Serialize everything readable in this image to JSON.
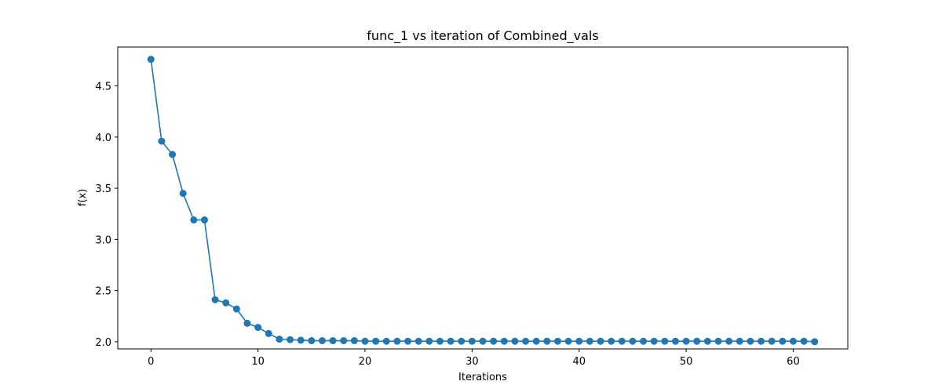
{
  "chart_data": {
    "type": "line",
    "title": "func_1 vs iteration of Combined_vals",
    "xlabel": "Iterations",
    "ylabel": "f(x)",
    "xlim": [
      -3.1,
      65.1
    ],
    "ylim": [
      1.93,
      4.88
    ],
    "xticks": [
      0,
      10,
      20,
      30,
      40,
      50,
      60
    ],
    "yticks": [
      2.0,
      2.5,
      3.0,
      3.5,
      4.0,
      4.5
    ],
    "grid": false,
    "color": "#1f77b4",
    "marker": "circle",
    "series": [
      {
        "x": [
          0,
          1,
          2,
          3,
          4,
          5,
          6,
          7,
          8,
          9,
          10,
          11,
          12,
          13,
          14,
          15,
          16,
          17,
          18,
          19,
          20,
          21,
          22,
          23,
          24,
          25,
          26,
          27,
          28,
          29,
          30,
          31,
          32,
          33,
          34,
          35,
          36,
          37,
          38,
          39,
          40,
          41,
          42,
          43,
          44,
          45,
          46,
          47,
          48,
          49,
          50,
          51,
          52,
          53,
          54,
          55,
          56,
          57,
          58,
          59,
          60,
          61,
          62
        ],
        "y": [
          4.76,
          3.96,
          3.83,
          3.45,
          3.19,
          3.19,
          2.41,
          2.38,
          2.32,
          2.18,
          2.14,
          2.08,
          2.025,
          2.02,
          2.015,
          2.01,
          2.01,
          2.01,
          2.01,
          2.01,
          2.005,
          2.005,
          2.005,
          2.005,
          2.005,
          2.005,
          2.005,
          2.005,
          2.005,
          2.005,
          2.005,
          2.005,
          2.005,
          2.005,
          2.005,
          2.005,
          2.005,
          2.005,
          2.005,
          2.005,
          2.005,
          2.005,
          2.005,
          2.005,
          2.005,
          2.005,
          2.005,
          2.005,
          2.005,
          2.005,
          2.005,
          2.005,
          2.005,
          2.005,
          2.005,
          2.005,
          2.005,
          2.005,
          2.005,
          2.005,
          2.005,
          2.005,
          2.0
        ]
      }
    ]
  }
}
